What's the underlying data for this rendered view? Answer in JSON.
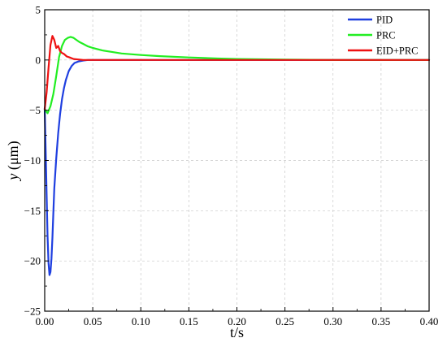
{
  "chart_data": {
    "type": "line",
    "xlabel": "t/s",
    "ylabel_italic": "y",
    "ylabel_unit": " (μm)",
    "xlim": [
      0,
      0.4
    ],
    "ylim": [
      -25,
      5
    ],
    "xticks": [
      0,
      0.05,
      0.1,
      0.15,
      0.2,
      0.25,
      0.3,
      0.35,
      0.4
    ],
    "xtick_labels": [
      "0.00",
      "0.05",
      "0.10",
      "0.15",
      "0.20",
      "0.25",
      "0.30",
      "0.35",
      "0.40"
    ],
    "yticks": [
      -25,
      -20,
      -15,
      -10,
      -5,
      0,
      5
    ],
    "ytick_labels": [
      "−25",
      "−20",
      "−15",
      "−10",
      "−5",
      "0",
      "5"
    ],
    "grid": true,
    "legend_position": "top-right",
    "series": [
      {
        "name": "PID",
        "color": "#1f3fe0",
        "x": [
          0,
          0.001,
          0.002,
          0.003,
          0.004,
          0.005,
          0.006,
          0.007,
          0.008,
          0.009,
          0.01,
          0.012,
          0.014,
          0.016,
          0.018,
          0.02,
          0.022,
          0.025,
          0.028,
          0.031,
          0.035,
          0.04,
          0.045,
          0.05,
          0.06,
          0.08,
          0.1,
          0.4
        ],
        "y": [
          -4.8,
          -9.0,
          -13.5,
          -17.5,
          -20.2,
          -21.4,
          -21.1,
          -19.8,
          -17.7,
          -15.3,
          -12.8,
          -9.8,
          -7.3,
          -5.4,
          -3.9,
          -2.8,
          -2.0,
          -1.1,
          -0.6,
          -0.3,
          -0.15,
          -0.05,
          0,
          0,
          0,
          0,
          0,
          0
        ]
      },
      {
        "name": "PRC",
        "color": "#22ee22",
        "x": [
          0,
          0.003,
          0.006,
          0.009,
          0.012,
          0.015,
          0.018,
          0.021,
          0.024,
          0.027,
          0.03,
          0.033,
          0.036,
          0.04,
          0.045,
          0.05,
          0.06,
          0.07,
          0.08,
          0.1,
          0.12,
          0.15,
          0.18,
          0.2,
          0.25,
          0.3,
          0.4
        ],
        "y": [
          -4.9,
          -5.3,
          -4.6,
          -3.4,
          -1.6,
          0.3,
          1.4,
          2.0,
          2.2,
          2.3,
          2.2,
          2.0,
          1.8,
          1.6,
          1.35,
          1.2,
          0.95,
          0.8,
          0.65,
          0.5,
          0.38,
          0.25,
          0.15,
          0.1,
          0.04,
          0.0,
          0.0
        ]
      },
      {
        "name": "EID+PRC",
        "color": "#ee1111",
        "x": [
          0,
          0.002,
          0.004,
          0.006,
          0.008,
          0.01,
          0.012,
          0.014,
          0.016,
          0.018,
          0.02,
          0.023,
          0.026,
          0.03,
          0.035,
          0.04,
          0.05,
          0.06,
          0.4
        ],
        "y": [
          -4.9,
          -3.2,
          -0.8,
          1.5,
          2.4,
          2.0,
          1.2,
          1.4,
          0.9,
          0.7,
          0.6,
          0.35,
          0.25,
          0.1,
          0.05,
          0.0,
          0.0,
          0.0,
          0.0
        ]
      }
    ]
  }
}
